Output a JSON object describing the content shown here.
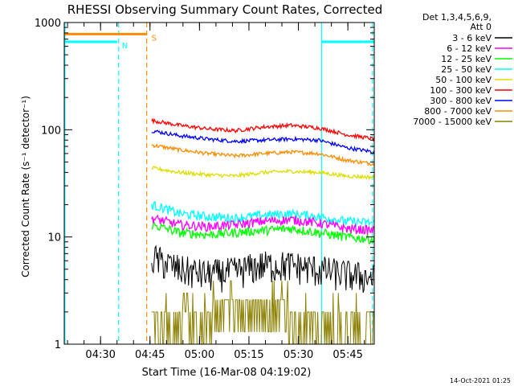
{
  "chart_data": {
    "type": "line",
    "title": "RHESSI Observing Summary Count Rates, Corrected",
    "xlabel": "Start Time (16-Mar-08 04:19:02)",
    "ylabel": "Corrected Count Rate (s⁻¹ detector⁻¹)",
    "yscale": "log",
    "ylim": [
      1,
      1000
    ],
    "xlim_minutes": [
      0,
      94
    ],
    "x_ticks": [
      {
        "label": "04:30",
        "minutes": 11
      },
      {
        "label": "04:45",
        "minutes": 26
      },
      {
        "label": "05:00",
        "minutes": 41
      },
      {
        "label": "05:15",
        "minutes": 56
      },
      {
        "label": "05:30",
        "minutes": 71
      },
      {
        "label": "05:45",
        "minutes": 86
      }
    ],
    "y_ticks": [
      {
        "label": "1",
        "value": 1
      },
      {
        "label": "10",
        "value": 10
      },
      {
        "label": "100",
        "value": 100
      },
      {
        "label": "1000",
        "value": 1000
      }
    ],
    "legend_header": [
      "Det 1,3,4,5,6,9,",
      "Att 0"
    ],
    "legend_position": "top-right",
    "data_start_minute": 26.5,
    "data_end_minute": 94,
    "series": [
      {
        "name": "3 - 6 keV",
        "color": "#000000",
        "values": [
          6.5,
          5.0,
          4.5,
          4.8,
          5.5,
          5.5,
          5.0,
          4.5,
          4.2
        ]
      },
      {
        "name": "6 - 12 keV",
        "color": "#ff00ff",
        "values": [
          15.0,
          13.0,
          12.5,
          13.0,
          14.0,
          14.5,
          13.5,
          12.0,
          11.5
        ]
      },
      {
        "name": "12 - 25 keV",
        "color": "#00ff00",
        "values": [
          13.0,
          11.0,
          10.5,
          11.0,
          11.5,
          12.0,
          11.0,
          10.0,
          9.5
        ]
      },
      {
        "name": "25 - 50 keV",
        "color": "#00ffff",
        "values": [
          20.0,
          16.5,
          15.5,
          15.0,
          16.0,
          16.5,
          15.5,
          14.0,
          13.5
        ]
      },
      {
        "name": "50 - 100 keV",
        "color": "#dddd00",
        "values": [
          44,
          40,
          38,
          37,
          40,
          41,
          40,
          37,
          36
        ]
      },
      {
        "name": "100 - 300 keV",
        "color": "#ff0000",
        "values": [
          122,
          110,
          102,
          98,
          106,
          110,
          104,
          90,
          82
        ]
      },
      {
        "name": "300 - 800 keV",
        "color": "#0000ff",
        "values": [
          98,
          88,
          82,
          78,
          80,
          82,
          80,
          68,
          62
        ]
      },
      {
        "name": "800 - 7000 keV",
        "color": "#ff8c00",
        "values": [
          72,
          65,
          60,
          57,
          60,
          62,
          60,
          52,
          48
        ]
      },
      {
        "name": "7000 - 15000 keV",
        "color": "#8b8000",
        "values": [
          2.0,
          1.8,
          1.7,
          2.0,
          2.4,
          2.5,
          2.0,
          1.8,
          1.6
        ]
      }
    ],
    "flag_bars": [
      {
        "label": "S",
        "color": "#ff8c00",
        "level": 780,
        "start_minute": 0,
        "end_minute": 25
      },
      {
        "label": "N",
        "color": "#00ffff",
        "level": 660,
        "start_minute": 0,
        "end_minute": 16
      },
      {
        "label": "",
        "color": "#00ffff",
        "level": 660,
        "start_minute": 78,
        "end_minute": 94
      }
    ],
    "vertical_lines": [
      {
        "minute": 0.2,
        "color": "#00ffff",
        "style": "solid"
      },
      {
        "minute": 16.5,
        "color": "#00ffff",
        "style": "dashed"
      },
      {
        "minute": 25.0,
        "color": "#ff8c00",
        "style": "dashed"
      },
      {
        "minute": 78.0,
        "color": "#00ffff",
        "style": "solid"
      },
      {
        "minute": 93.5,
        "color": "#00ffff",
        "style": "dashed"
      }
    ],
    "timestamp": "14-Oct-2021 01:25"
  }
}
